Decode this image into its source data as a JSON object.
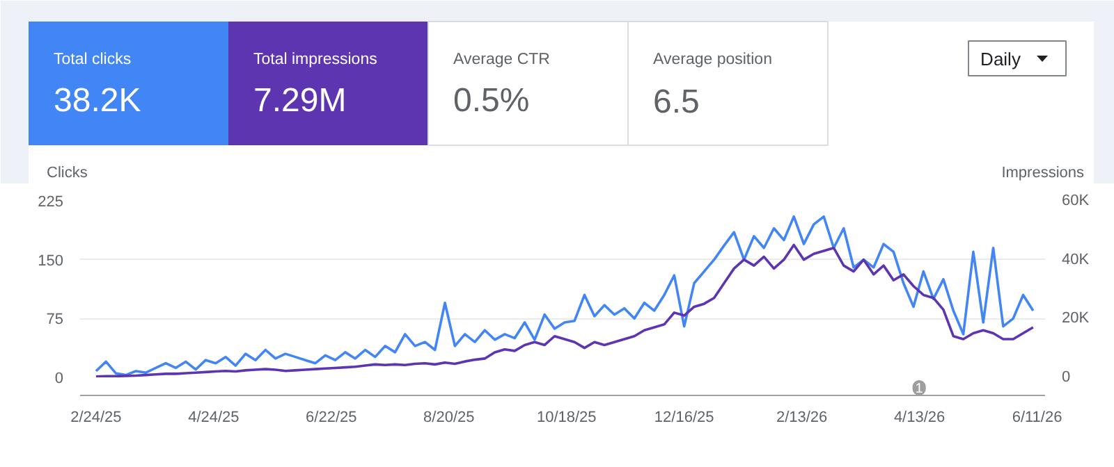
{
  "chart_data": [
    {
      "type": "other",
      "annotations": [
        "Total clicks",
        "38.2K",
        "Total impressions",
        "7.29M",
        "Average CTR",
        "0.5%",
        "Average position",
        "6.5",
        "Daily"
      ]
    },
    {
      "type": "line",
      "ylabel": "Clicks",
      "y2label": "Impressions",
      "x": [
        "2025-02-24",
        "2025-03-01",
        "2025-03-06",
        "2025-03-11",
        "2025-03-16",
        "2025-03-21",
        "2025-03-26",
        "2025-03-31",
        "2025-04-05",
        "2025-04-10",
        "2025-04-15",
        "2025-04-20",
        "2025-04-25",
        "2025-04-30",
        "2025-05-05",
        "2025-05-10",
        "2025-05-15",
        "2025-05-20",
        "2025-05-25",
        "2025-05-30",
        "2025-06-04",
        "2025-06-09",
        "2025-06-14",
        "2025-06-19",
        "2025-06-24",
        "2025-06-29",
        "2025-07-04",
        "2025-07-09",
        "2025-07-14",
        "2025-07-19",
        "2025-07-24",
        "2025-07-29",
        "2025-08-03",
        "2025-08-08",
        "2025-08-13",
        "2025-08-18",
        "2025-08-23",
        "2025-08-28",
        "2025-09-02",
        "2025-09-07",
        "2025-09-12",
        "2025-09-17",
        "2025-09-22",
        "2025-09-27",
        "2025-10-02",
        "2025-10-07",
        "2025-10-12",
        "2025-10-17",
        "2025-10-22",
        "2025-10-27",
        "2025-11-01",
        "2025-11-06",
        "2025-11-11",
        "2025-11-16",
        "2025-11-21",
        "2025-11-26",
        "2025-12-01",
        "2025-12-06",
        "2025-12-11",
        "2025-12-16",
        "2025-12-21",
        "2025-12-26",
        "2025-12-31",
        "2026-01-05",
        "2026-01-10",
        "2026-01-15",
        "2026-01-20",
        "2026-01-25",
        "2026-01-30",
        "2026-02-04",
        "2026-02-09",
        "2026-02-14",
        "2026-02-19",
        "2026-02-24",
        "2026-03-01",
        "2026-03-06",
        "2026-03-11",
        "2026-03-16",
        "2026-03-21",
        "2026-03-26",
        "2026-03-31",
        "2026-04-05",
        "2026-04-10",
        "2026-04-15",
        "2026-04-20",
        "2026-04-25",
        "2026-04-30",
        "2026-05-05",
        "2026-05-10",
        "2026-05-15",
        "2026-05-20",
        "2026-05-25",
        "2026-05-30",
        "2026-06-04",
        "2026-06-09"
      ],
      "series": [
        {
          "color": "#4285f4",
          "values": [
            8,
            20,
            5,
            3,
            8,
            6,
            12,
            18,
            12,
            20,
            10,
            22,
            18,
            26,
            15,
            30,
            22,
            35,
            24,
            30,
            26,
            22,
            18,
            28,
            22,
            32,
            24,
            35,
            26,
            40,
            32,
            55,
            40,
            45,
            35,
            95,
            40,
            55,
            45,
            60,
            48,
            55,
            50,
            70,
            48,
            80,
            62,
            70,
            72,
            105,
            78,
            92,
            80,
            88,
            75,
            95,
            85,
            105,
            130,
            65,
            120,
            135,
            150,
            168,
            185,
            150,
            180,
            165,
            190,
            175,
            205,
            170,
            195,
            205,
            165,
            190,
            140,
            150,
            140,
            170,
            160,
            120,
            90,
            135,
            100,
            125,
            85,
            55,
            160,
            70,
            165,
            65,
            75,
            105,
            85
          ]
        },
        {
          "color": "#5e35b1",
          "axis": "y2",
          "values": [
            300,
            400,
            400,
            500,
            600,
            800,
            1000,
            1200,
            1200,
            1400,
            1600,
            1800,
            2000,
            2200,
            2000,
            2400,
            2600,
            2800,
            2600,
            2200,
            2400,
            2600,
            2800,
            3000,
            3200,
            3400,
            3600,
            4000,
            4400,
            4200,
            4400,
            4200,
            4600,
            4800,
            4400,
            5000,
            4600,
            5400,
            6000,
            6400,
            8500,
            9500,
            9000,
            11000,
            12000,
            11000,
            14000,
            13000,
            12000,
            10000,
            12000,
            11000,
            12000,
            13000,
            14000,
            16000,
            17000,
            18000,
            22000,
            21000,
            24000,
            25000,
            27000,
            32000,
            37000,
            40000,
            38000,
            41000,
            37000,
            40000,
            45000,
            40000,
            42000,
            43000,
            44000,
            38000,
            36000,
            40000,
            35000,
            38000,
            33000,
            35000,
            31000,
            28000,
            27000,
            23000,
            14000,
            13000,
            15000,
            16000,
            15000,
            13000,
            13000,
            15000,
            17000
          ]
        }
      ],
      "xlim": [
        "2025-02-16",
        "2026-06-15"
      ],
      "xticks": [
        {
          "value": "2025-02-24",
          "label": "2/24/25"
        },
        {
          "value": "2025-04-24",
          "label": "4/24/25"
        },
        {
          "value": "2025-06-22",
          "label": "6/22/25"
        },
        {
          "value": "2025-08-20",
          "label": "8/20/25"
        },
        {
          "value": "2025-10-18",
          "label": "10/18/25"
        },
        {
          "value": "2025-12-16",
          "label": "12/16/25"
        },
        {
          "value": "2026-02-13",
          "label": "2/13/26"
        },
        {
          "value": "2026-04-13",
          "label": "4/13/26"
        },
        {
          "value": "2026-06-11",
          "label": "6/11/26"
        }
      ],
      "ylim": [
        0,
        225
      ],
      "yticks": [
        0,
        75,
        150,
        225
      ],
      "y2lim": [
        0,
        60000
      ],
      "y2ticks": [
        0,
        {
          "value": 20000,
          "label": "20K"
        },
        {
          "value": 40000,
          "label": "40K"
        },
        {
          "value": 60000,
          "label": "60K"
        }
      ],
      "grid": "y",
      "annotations": [
        {
          "text": "1",
          "x": "2026-04-13"
        }
      ]
    }
  ]
}
